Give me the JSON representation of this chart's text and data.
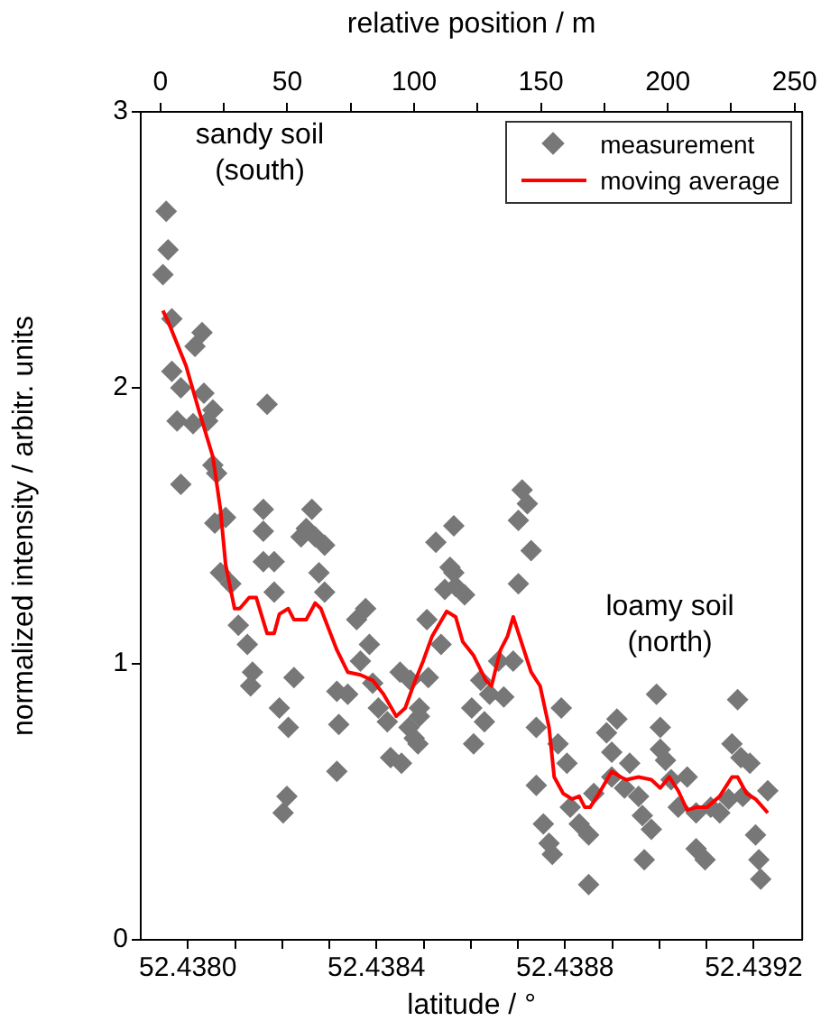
{
  "chart_data": {
    "type": "scatter",
    "xlabel": "latitude / °",
    "ylabel": "normalized intensity / arbitr. units",
    "x2label": "relative position / m",
    "xlim": [
      52.4379,
      52.439303
    ],
    "xticks": [
      {
        "value": 52.438,
        "label": "52.4380"
      },
      {
        "value": 52.4381,
        "label": null
      },
      {
        "value": 52.4382,
        "label": null
      },
      {
        "value": 52.4383,
        "label": null
      },
      {
        "value": 52.4384,
        "label": "52.4384"
      },
      {
        "value": 52.4385,
        "label": null
      },
      {
        "value": 52.4386,
        "label": null
      },
      {
        "value": 52.4387,
        "label": null
      },
      {
        "value": 52.4388,
        "label": "52.4388"
      },
      {
        "value": 52.4389,
        "label": null
      },
      {
        "value": 52.439,
        "label": null
      },
      {
        "value": 52.4391,
        "label": null
      },
      {
        "value": 52.4392,
        "label": "52.4392"
      }
    ],
    "x2lim": [
      -7.8,
      253
    ],
    "x2ticks": [
      0,
      {
        "value": 25,
        "label": null
      },
      50,
      {
        "value": 75,
        "label": null
      },
      100,
      {
        "value": 125,
        "label": null
      },
      150,
      {
        "value": 175,
        "label": null
      },
      200,
      {
        "value": 225,
        "label": null
      },
      250
    ],
    "ylim": [
      0,
      3
    ],
    "yticks": [
      0,
      1,
      2,
      3
    ],
    "grid": false,
    "legend": "top right",
    "series": [
      {
        "name": "measurement",
        "color": "#777777",
        "marker": "diamond",
        "x": [
          52.437954,
          52.437958,
          52.437947,
          52.437966,
          52.43803,
          52.438015,
          52.437966,
          52.437985,
          52.438034,
          52.438053,
          52.438168,
          52.437977,
          52.438011,
          52.438042,
          52.438053,
          52.437985,
          52.438061,
          52.43808,
          52.438057,
          52.438069,
          52.438091,
          52.438107,
          52.438126,
          52.438137,
          52.438133,
          52.43816,
          52.43816,
          52.43816,
          52.438183,
          52.438183,
          52.438194,
          52.438213,
          52.438225,
          52.43821,
          52.438202,
          52.438263,
          52.438251,
          52.43827,
          52.43829,
          52.438278,
          52.43829,
          52.43824,
          52.438316,
          52.43832,
          52.438339,
          52.438316,
          52.438358,
          52.438377,
          52.438366,
          52.438385,
          52.438392,
          52.438404,
          52.438423,
          52.43843,
          52.438453,
          52.43845,
          52.438472,
          52.438469,
          52.438488,
          52.438491,
          52.43851,
          52.438507,
          52.438526,
          52.438564,
          52.438545,
          52.438564,
          52.438537,
          52.438556,
          52.438568,
          52.438587,
          52.438491,
          52.43848,
          52.438709,
          52.43872,
          52.438701,
          52.438728,
          52.438701,
          52.438621,
          52.43864,
          52.438659,
          52.43867,
          52.438602,
          52.438629,
          52.438606,
          52.43869,
          52.438739,
          52.438792,
          52.438785,
          52.438804,
          52.438739,
          52.438754,
          52.438766,
          52.438773,
          52.438811,
          52.43883,
          52.43885,
          52.438861,
          52.43885,
          52.438888,
          52.43891,
          52.438899,
          52.438899,
          52.438937,
          52.438926,
          52.438956,
          52.438964,
          52.438968,
          52.438983,
          52.438994,
          52.439002,
          52.439002,
          52.439013,
          52.439025,
          52.43904,
          52.439059,
          52.439078,
          52.439078,
          52.439097,
          52.439109,
          52.439128,
          52.439166,
          52.439154,
          52.439173,
          52.439192,
          52.439147,
          52.439177,
          52.439204,
          52.439211,
          52.439215,
          52.43923
        ],
        "values": [
          2.64,
          2.5,
          2.41,
          2.25,
          2.2,
          2.15,
          2.06,
          2.0,
          1.98,
          1.92,
          1.94,
          1.88,
          1.87,
          1.88,
          1.72,
          1.65,
          1.69,
          1.53,
          1.51,
          1.33,
          1.29,
          1.14,
          1.07,
          0.97,
          0.92,
          1.56,
          1.48,
          1.37,
          1.37,
          1.26,
          0.84,
          0.77,
          0.95,
          0.52,
          0.46,
          1.56,
          1.49,
          1.46,
          1.43,
          1.33,
          1.26,
          1.46,
          0.9,
          0.78,
          0.89,
          0.61,
          1.16,
          1.2,
          1.01,
          1.07,
          0.93,
          0.84,
          0.79,
          0.66,
          0.64,
          0.97,
          0.94,
          0.77,
          0.71,
          0.84,
          0.95,
          1.16,
          1.44,
          1.5,
          1.27,
          1.33,
          1.07,
          1.35,
          1.28,
          1.25,
          0.81,
          0.73,
          1.63,
          1.58,
          1.52,
          1.41,
          1.29,
          0.94,
          0.89,
          1.01,
          0.88,
          0.84,
          0.79,
          0.71,
          1.01,
          0.77,
          0.84,
          0.71,
          0.64,
          0.56,
          0.42,
          0.35,
          0.31,
          0.48,
          0.42,
          0.38,
          0.53,
          0.2,
          0.75,
          0.8,
          0.68,
          0.59,
          0.64,
          0.55,
          0.52,
          0.45,
          0.29,
          0.4,
          0.89,
          0.77,
          0.69,
          0.65,
          0.58,
          0.48,
          0.59,
          0.46,
          0.33,
          0.29,
          0.48,
          0.46,
          0.87,
          0.71,
          0.66,
          0.64,
          0.51,
          0.52,
          0.38,
          0.29,
          0.22,
          0.54
        ]
      },
      {
        "name": "moving average",
        "type": "line",
        "color": "#ff0000",
        "marker": "none",
        "line_style": "solid",
        "x": [
          52.437947,
          52.437958,
          52.437996,
          52.438023,
          52.438053,
          52.438069,
          52.43808,
          52.438099,
          52.43811,
          52.43813,
          52.438145,
          52.438168,
          52.438183,
          52.438194,
          52.438213,
          52.438225,
          52.438251,
          52.43827,
          52.438282,
          52.438316,
          52.438339,
          52.438366,
          52.438392,
          52.438415,
          52.438442,
          52.438461,
          52.43848,
          52.438499,
          52.438518,
          52.438549,
          52.438568,
          52.438583,
          52.438606,
          52.438632,
          52.438644,
          52.438663,
          52.438678,
          52.43869,
          52.438709,
          52.438728,
          52.438747,
          52.438766,
          52.438777,
          52.438796,
          52.438815,
          52.43883,
          52.438842,
          52.438853,
          52.438872,
          52.438899,
          52.438918,
          52.43893,
          52.438956,
          52.438983,
          52.439002,
          52.439021,
          52.43904,
          52.439059,
          52.439078,
          52.439101,
          52.439128,
          52.439154,
          52.439166,
          52.439185,
          52.439204,
          52.43923
        ],
        "values": [
          2.28,
          2.24,
          2.08,
          1.92,
          1.75,
          1.56,
          1.36,
          1.2,
          1.2,
          1.24,
          1.24,
          1.11,
          1.11,
          1.18,
          1.2,
          1.16,
          1.16,
          1.22,
          1.2,
          1.05,
          0.97,
          0.96,
          0.94,
          0.89,
          0.81,
          0.84,
          0.93,
          1.01,
          1.1,
          1.19,
          1.17,
          1.08,
          1.03,
          0.94,
          0.92,
          1.05,
          1.1,
          1.17,
          1.07,
          0.97,
          0.92,
          0.77,
          0.59,
          0.53,
          0.51,
          0.52,
          0.48,
          0.48,
          0.53,
          0.61,
          0.59,
          0.58,
          0.59,
          0.58,
          0.55,
          0.59,
          0.54,
          0.47,
          0.48,
          0.48,
          0.52,
          0.59,
          0.59,
          0.53,
          0.51,
          0.46
        ]
      }
    ],
    "annotations": [
      "sandy soil\n(south)",
      "loamy soil\n(north)"
    ]
  }
}
